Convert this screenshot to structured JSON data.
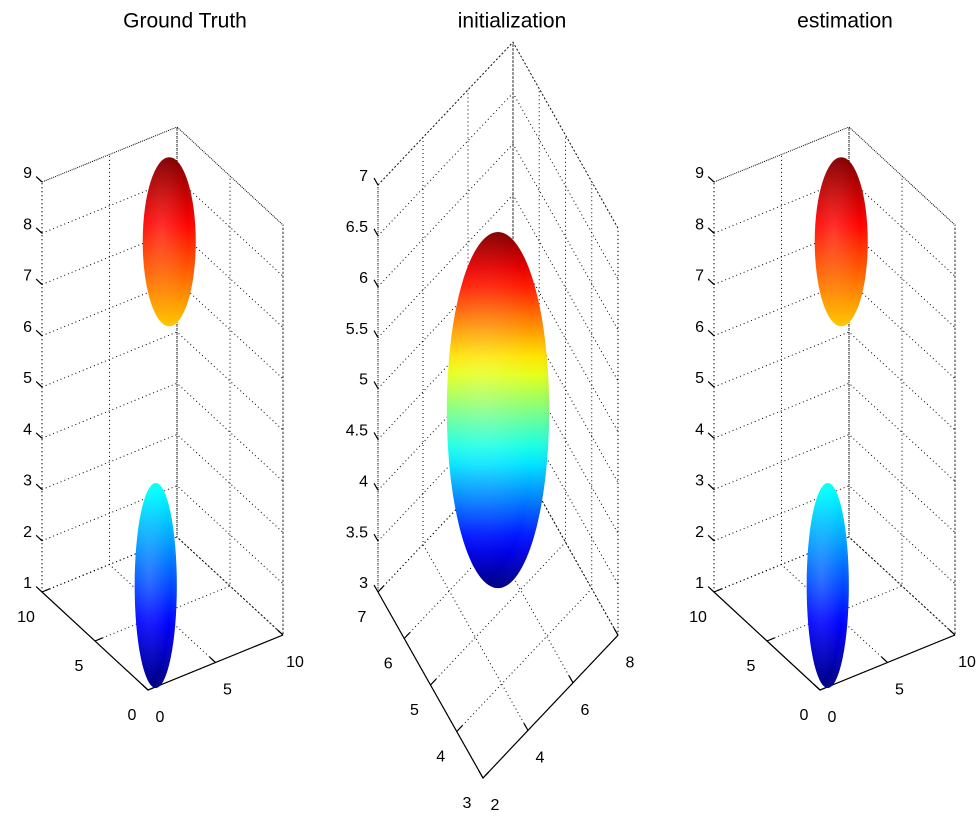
{
  "chart_data": [
    {
      "type": "ellipsoid3d",
      "title": "Ground Truth",
      "xlim": [
        0,
        10
      ],
      "ylim": [
        0,
        10
      ],
      "zlim": [
        1,
        9
      ],
      "xticks": [
        0,
        5,
        10
      ],
      "yticks": [
        0,
        5,
        10
      ],
      "zticks": [
        1,
        2,
        3,
        4,
        5,
        6,
        7,
        8,
        9
      ],
      "grid": true,
      "ellipsoids": [
        {
          "center": [
            5.5,
            5,
            8.2
          ],
          "radii": [
            2.2,
            2.2,
            1.65
          ]
        },
        {
          "center": [
            4.5,
            5,
            1.6
          ],
          "radii": [
            1.75,
            1.75,
            2
          ]
        }
      ]
    },
    {
      "type": "ellipsoid3d",
      "title": "initialization",
      "xlim": [
        2,
        8
      ],
      "ylim": [
        3,
        7
      ],
      "zlim": [
        3,
        7
      ],
      "xticks": [
        2,
        4,
        6,
        8
      ],
      "yticks": [
        3,
        4,
        5,
        6,
        7
      ],
      "zticks": [
        3,
        3.5,
        4,
        4.5,
        5,
        5.5,
        6,
        6.5,
        7
      ],
      "grid": true,
      "ellipsoids": [
        {
          "center": [
            5,
            5,
            5
          ],
          "radii": [
            2.1,
            2.1,
            1.75
          ]
        }
      ]
    },
    {
      "type": "ellipsoid3d",
      "title": "estimation",
      "xlim": [
        0,
        10
      ],
      "ylim": [
        0,
        10
      ],
      "zlim": [
        1,
        9
      ],
      "xticks": [
        0,
        5,
        10
      ],
      "yticks": [
        0,
        5,
        10
      ],
      "zticks": [
        1,
        2,
        3,
        4,
        5,
        6,
        7,
        8,
        9
      ],
      "grid": true,
      "ellipsoids": [
        {
          "center": [
            5.5,
            5,
            8.2
          ],
          "radii": [
            2.2,
            2.2,
            1.65
          ]
        },
        {
          "center": [
            4.5,
            5,
            1.6
          ],
          "radii": [
            1.75,
            1.75,
            2
          ]
        }
      ]
    }
  ]
}
